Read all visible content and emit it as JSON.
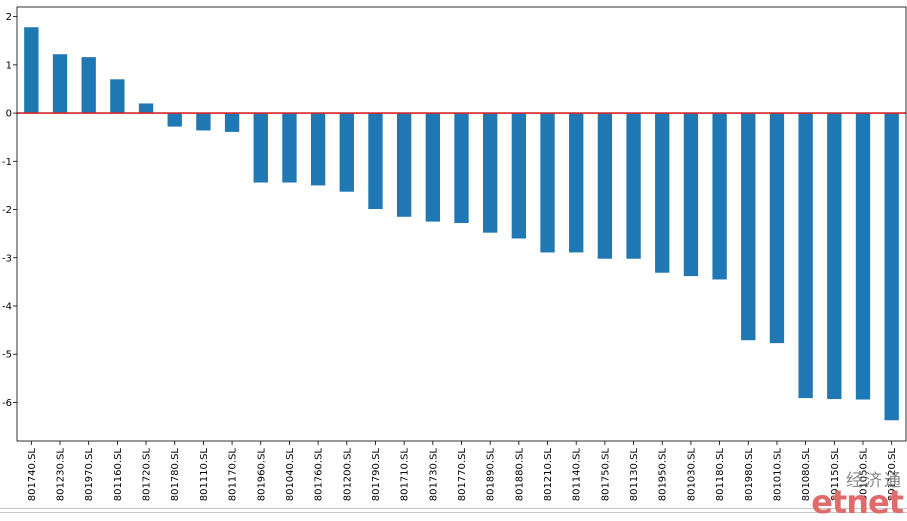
{
  "chart_data": {
    "type": "bar",
    "title": "",
    "xlabel": "",
    "ylabel": "",
    "ylim": [
      -6.8,
      2.2
    ],
    "yticks": [
      2,
      1,
      0,
      -1,
      -2,
      -3,
      -4,
      -5,
      -6
    ],
    "grid": false,
    "bar_color": "#1f77b4",
    "zero_line_color": "#d62728",
    "categories": [
      "801740.SL",
      "801230.SL",
      "801970.SL",
      "801160.SL",
      "801720.SL",
      "801780.SL",
      "801110.SL",
      "801170.SL",
      "801960.SL",
      "801040.SL",
      "801760.SL",
      "801200.SL",
      "801790.SL",
      "801710.SL",
      "801730.SL",
      "801770.SL",
      "801890.SL",
      "801880.SL",
      "801210.SL",
      "801140.SL",
      "801750.SL",
      "801130.SL",
      "801950.SL",
      "801030.SL",
      "801180.SL",
      "801980.SL",
      "801010.SL",
      "801080.SL",
      "801150.SL",
      "801050.SL",
      "801120.SL"
    ],
    "values": [
      1.78,
      1.22,
      1.16,
      0.7,
      0.2,
      -0.28,
      -0.36,
      -0.39,
      -1.44,
      -1.44,
      -1.5,
      -1.63,
      -1.99,
      -2.15,
      -2.25,
      -2.28,
      -2.48,
      -2.6,
      -2.89,
      -2.89,
      -3.02,
      -3.02,
      -3.31,
      -3.38,
      -3.45,
      -4.71,
      -4.77,
      -5.91,
      -5.93,
      -5.94,
      -6.37
    ]
  },
  "watermark": {
    "chinese": "经济通",
    "english": "etnet"
  }
}
